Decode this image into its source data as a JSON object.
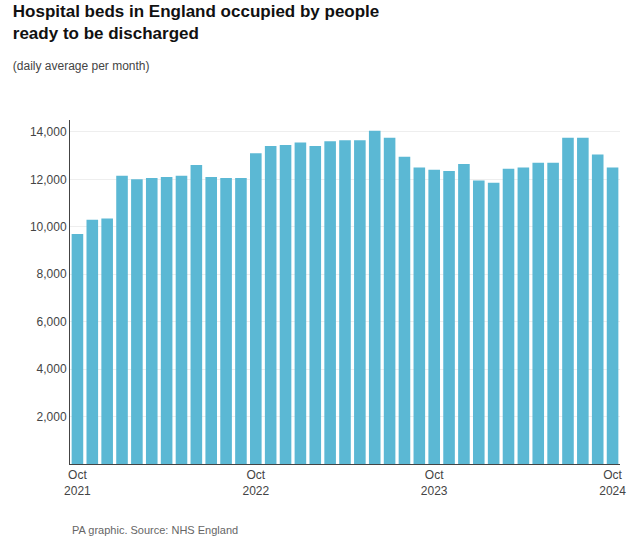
{
  "chart_data": {
    "type": "bar",
    "title": "Hospital beds in England occupied by people\nready to be discharged",
    "subtitle": "(daily average per month)",
    "annotations": [
      "PA graphic. Source: NHS England"
    ],
    "color": "#5BB8D4",
    "categories": [
      "Oct\n2021",
      null,
      null,
      null,
      null,
      null,
      null,
      null,
      null,
      null,
      null,
      null,
      "Oct\n2022",
      null,
      null,
      null,
      null,
      null,
      null,
      null,
      null,
      null,
      null,
      null,
      "Oct\n2023",
      null,
      null,
      null,
      null,
      null,
      null,
      null,
      null,
      null,
      null,
      null,
      "Oct\n2024"
    ],
    "values": [
      9700,
      10300,
      10350,
      12150,
      12000,
      12050,
      12100,
      12150,
      12600,
      12100,
      12050,
      12050,
      13100,
      13400,
      13450,
      13550,
      13400,
      13600,
      13650,
      13650,
      14050,
      13750,
      12950,
      12500,
      12400,
      12350,
      12650,
      11950,
      11850,
      12450,
      12500,
      12700,
      12700,
      13750,
      13750,
      13050,
      12500
    ],
    "ylim": [
      0,
      14500
    ],
    "yticks": [
      {
        "value": 2000,
        "label": "2,000"
      },
      {
        "value": 4000,
        "label": "4,000"
      },
      {
        "value": 6000,
        "label": "6,000"
      },
      {
        "value": 8000,
        "label": "8,000"
      },
      {
        "value": 10000,
        "label": "10,000"
      },
      {
        "value": 12000,
        "label": "12,000"
      },
      {
        "value": 14000,
        "label": "14,000"
      }
    ],
    "grid": true
  }
}
